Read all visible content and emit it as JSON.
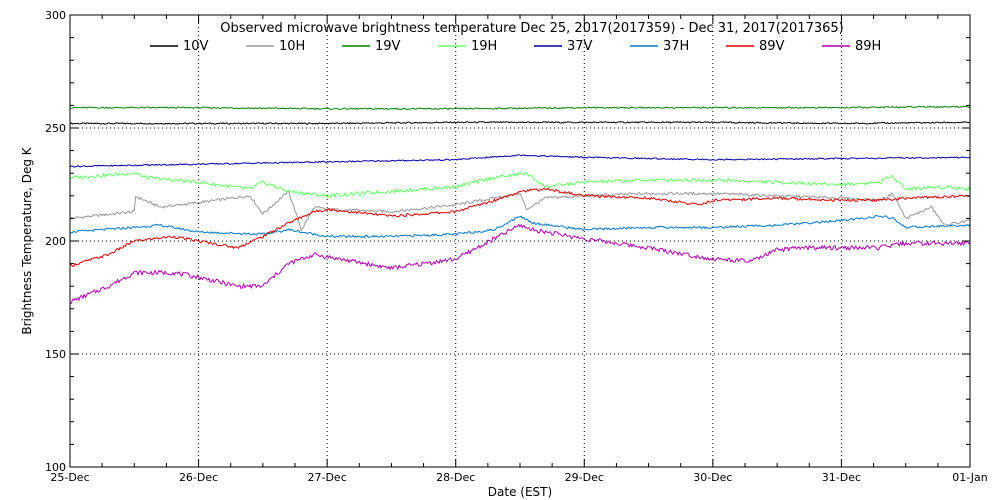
{
  "chart_data": {
    "type": "line",
    "title": "Observed microwave brightness temperature Dec 25, 2017(2017359) - Dec 31, 2017(2017365)",
    "xlabel": "Date (EST)",
    "ylabel": "Brightness Temperature, Deg K",
    "xlim": [
      0,
      7
    ],
    "ylim": [
      100,
      300
    ],
    "x_tick_values": [
      0,
      1,
      2,
      3,
      4,
      5,
      6,
      7
    ],
    "x_tick_labels": [
      "25-Dec",
      "26-Dec",
      "27-Dec",
      "28-Dec",
      "29-Dec",
      "30-Dec",
      "31-Dec",
      "01-Jan"
    ],
    "y_ticks": [
      100,
      150,
      200,
      250,
      300
    ],
    "y_tick_labels": [
      "100",
      "150",
      "200",
      "250",
      "300"
    ],
    "grid": true,
    "legend_position": "top",
    "series": [
      {
        "name": "10V",
        "color": "#000000",
        "noise": 0.3,
        "points": [
          [
            0,
            252
          ],
          [
            1,
            252
          ],
          [
            2,
            252
          ],
          [
            3,
            252.5
          ],
          [
            3.5,
            252.5
          ],
          [
            4,
            252.5
          ],
          [
            4.5,
            252.5
          ],
          [
            5,
            252.5
          ],
          [
            6,
            252
          ],
          [
            7,
            252.5
          ]
        ]
      },
      {
        "name": "10H",
        "color": "#999999",
        "noise": 0.6,
        "points": [
          [
            0,
            210
          ],
          [
            0.5,
            213
          ],
          [
            0.5,
            220
          ],
          [
            0.7,
            215
          ],
          [
            1,
            217
          ],
          [
            1.4,
            220
          ],
          [
            1.5,
            212
          ],
          [
            1.7,
            222
          ],
          [
            1.8,
            205
          ],
          [
            1.9,
            215
          ],
          [
            2,
            214
          ],
          [
            2.5,
            213
          ],
          [
            3,
            216
          ],
          [
            3.5,
            221
          ],
          [
            3.55,
            214
          ],
          [
            3.7,
            219
          ],
          [
            4,
            220
          ],
          [
            4.5,
            221
          ],
          [
            5,
            221
          ],
          [
            5.5,
            220
          ],
          [
            6,
            219
          ],
          [
            6.3,
            218
          ],
          [
            6.4,
            221
          ],
          [
            6.5,
            210
          ],
          [
            6.7,
            215
          ],
          [
            6.8,
            207
          ],
          [
            7,
            209
          ]
        ]
      },
      {
        "name": "19V",
        "color": "#008000",
        "noise": 0.3,
        "points": [
          [
            0,
            259
          ],
          [
            1,
            259
          ],
          [
            2,
            258.5
          ],
          [
            3,
            258.5
          ],
          [
            4,
            259
          ],
          [
            5,
            259
          ],
          [
            6,
            259
          ],
          [
            7,
            259.5
          ]
        ]
      },
      {
        "name": "19H",
        "color": "#66ff66",
        "noise": 0.8,
        "points": [
          [
            0,
            228
          ],
          [
            0.5,
            230
          ],
          [
            0.6,
            228
          ],
          [
            1,
            226
          ],
          [
            1.4,
            223
          ],
          [
            1.5,
            226
          ],
          [
            1.7,
            222
          ],
          [
            2,
            220
          ],
          [
            2.5,
            222
          ],
          [
            3,
            224
          ],
          [
            3.3,
            228
          ],
          [
            3.55,
            230
          ],
          [
            3.7,
            224
          ],
          [
            4,
            226
          ],
          [
            4.5,
            227
          ],
          [
            5,
            227
          ],
          [
            5.5,
            226
          ],
          [
            6,
            225
          ],
          [
            6.3,
            226
          ],
          [
            6.4,
            229
          ],
          [
            6.5,
            223
          ],
          [
            6.8,
            224
          ],
          [
            7,
            223
          ]
        ]
      },
      {
        "name": "37V",
        "color": "#0000aa",
        "noise": 0.3,
        "points": [
          [
            0,
            233
          ],
          [
            1,
            234
          ],
          [
            2,
            235
          ],
          [
            3,
            236
          ],
          [
            3.5,
            238
          ],
          [
            4,
            237
          ],
          [
            5,
            236
          ],
          [
            6,
            236.5
          ],
          [
            7,
            237
          ]
        ]
      },
      {
        "name": "37H",
        "color": "#0077cc",
        "noise": 0.5,
        "points": [
          [
            0,
            204
          ],
          [
            0.5,
            206
          ],
          [
            0.7,
            207
          ],
          [
            1,
            204
          ],
          [
            1.5,
            203
          ],
          [
            1.7,
            205
          ],
          [
            2,
            202
          ],
          [
            2.5,
            202
          ],
          [
            3,
            203
          ],
          [
            3.3,
            205
          ],
          [
            3.5,
            211
          ],
          [
            3.6,
            208
          ],
          [
            4,
            205
          ],
          [
            4.5,
            206
          ],
          [
            5,
            206
          ],
          [
            5.5,
            207
          ],
          [
            6,
            209
          ],
          [
            6.3,
            211
          ],
          [
            6.4,
            210
          ],
          [
            6.5,
            206
          ],
          [
            7,
            207
          ]
        ]
      },
      {
        "name": "89V",
        "color": "#dd0000",
        "noise": 0.6,
        "points": [
          [
            0,
            189
          ],
          [
            0.3,
            194
          ],
          [
            0.5,
            200
          ],
          [
            0.8,
            202
          ],
          [
            1,
            200
          ],
          [
            1.3,
            197
          ],
          [
            1.5,
            202
          ],
          [
            1.7,
            208
          ],
          [
            1.9,
            213
          ],
          [
            2,
            214
          ],
          [
            2.5,
            211
          ],
          [
            3,
            213
          ],
          [
            3.3,
            218
          ],
          [
            3.5,
            222
          ],
          [
            3.7,
            223
          ],
          [
            4,
            220
          ],
          [
            4.5,
            219
          ],
          [
            4.9,
            216
          ],
          [
            5,
            218
          ],
          [
            5.5,
            219
          ],
          [
            6,
            218
          ],
          [
            6.3,
            218
          ],
          [
            6.5,
            219
          ],
          [
            7,
            220
          ]
        ]
      },
      {
        "name": "89H",
        "color": "#b000b0",
        "noise": 1.0,
        "points": [
          [
            0,
            173
          ],
          [
            0.3,
            180
          ],
          [
            0.5,
            186
          ],
          [
            0.8,
            186
          ],
          [
            1,
            184
          ],
          [
            1.3,
            180
          ],
          [
            1.5,
            180
          ],
          [
            1.7,
            190
          ],
          [
            1.9,
            194
          ],
          [
            2,
            193
          ],
          [
            2.5,
            188
          ],
          [
            3,
            192
          ],
          [
            3.2,
            198
          ],
          [
            3.5,
            207
          ],
          [
            3.6,
            205
          ],
          [
            4,
            201
          ],
          [
            4.5,
            197
          ],
          [
            5,
            192
          ],
          [
            5.3,
            191
          ],
          [
            5.5,
            196
          ],
          [
            5.7,
            197
          ],
          [
            6,
            197
          ],
          [
            6.3,
            197
          ],
          [
            6.5,
            199
          ],
          [
            7,
            199
          ]
        ]
      }
    ]
  }
}
